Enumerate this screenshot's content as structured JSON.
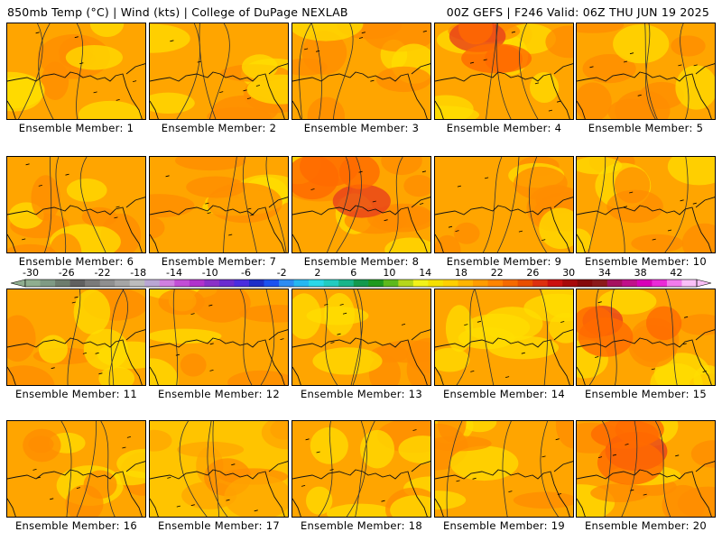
{
  "header": {
    "left": "850mb Temp (°C) | Wind (kts) | College of DuPage NEXLAB",
    "right": "00Z GEFS | F246 Valid: 06Z THU JUN 19 2025"
  },
  "member_label_prefix": "Ensemble Member: ",
  "members": [
    {
      "id": 1,
      "tint": "base"
    },
    {
      "id": 2,
      "tint": "base"
    },
    {
      "id": 3,
      "tint": "base"
    },
    {
      "id": 4,
      "tint": "warm"
    },
    {
      "id": 5,
      "tint": "base"
    },
    {
      "id": 6,
      "tint": "base"
    },
    {
      "id": 7,
      "tint": "base"
    },
    {
      "id": 8,
      "tint": "warm"
    },
    {
      "id": 9,
      "tint": "base"
    },
    {
      "id": 10,
      "tint": "base"
    },
    {
      "id": 11,
      "tint": "base"
    },
    {
      "id": 12,
      "tint": "base"
    },
    {
      "id": 13,
      "tint": "base"
    },
    {
      "id": 14,
      "tint": "base"
    },
    {
      "id": 15,
      "tint": "warm"
    },
    {
      "id": 16,
      "tint": "base"
    },
    {
      "id": 17,
      "tint": "cool"
    },
    {
      "id": 18,
      "tint": "base"
    },
    {
      "id": 19,
      "tint": "base"
    },
    {
      "id": 20,
      "tint": "warm"
    }
  ],
  "colorbar": {
    "labels": [
      "-30",
      "-26",
      "-22",
      "-18",
      "-14",
      "-10",
      "-6",
      "-2",
      "2",
      "6",
      "10",
      "14",
      "18",
      "22",
      "26",
      "30",
      "34",
      "38",
      "42"
    ],
    "colors": [
      "#8fae8f",
      "#7f9a84",
      "#6d7c6d",
      "#606060",
      "#7a7a7a",
      "#8f8f8f",
      "#a5a5a5",
      "#bcbcbc",
      "#b9a6d4",
      "#d07fe0",
      "#c24ed6",
      "#b032cc",
      "#8a30c8",
      "#6a2bd0",
      "#4a2de0",
      "#1c2ec8",
      "#1b52f0",
      "#2c8cf2",
      "#25b7f2",
      "#2ad8e8",
      "#22ccc0",
      "#19b58a",
      "#139a4e",
      "#1e9a1e",
      "#5db91c",
      "#b5d61c",
      "#f2f21a",
      "#f5e000",
      "#ffcf00",
      "#ffb400",
      "#ff9c00",
      "#ff8400",
      "#f56a00",
      "#e84f00",
      "#dd3010",
      "#cc1010",
      "#a80a0a",
      "#860a0a",
      "#8c1a1a",
      "#a51060",
      "#c0108a",
      "#d800b8",
      "#ea2ad8",
      "#f27bec",
      "#fac0f7"
    ]
  },
  "map_colors": {
    "base": "#ffa500",
    "mid": "#ff8c00",
    "warm": "#ff6a00",
    "hot": "#e8401a",
    "cool": "#ffc400",
    "yellow": "#ffdd00",
    "contour": "#333333",
    "coast": "#111111"
  }
}
